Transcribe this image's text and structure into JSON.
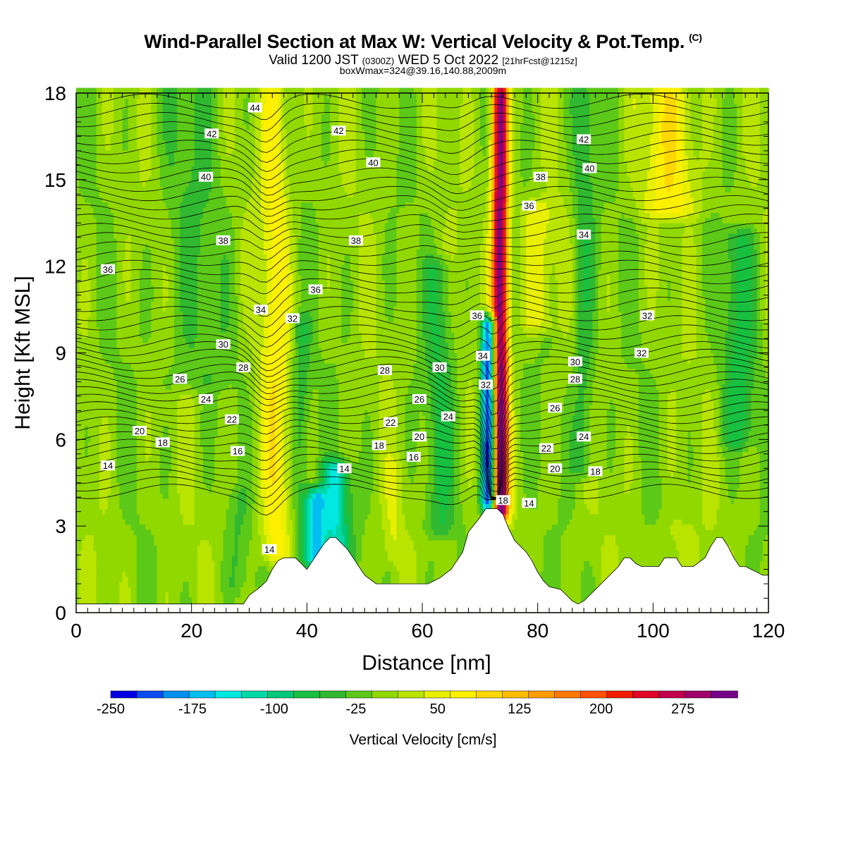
{
  "header": {
    "title": "Wind-Parallel Section at Max W: Vertical Velocity & Pot.Temp.",
    "copyright": "(C)",
    "valid_prefix": "Valid 1200 JST",
    "valid_zulu": "(0300Z)",
    "valid_date": "WED 5 Oct 2022",
    "forecast": "[21hrFcst@1215z]",
    "subtitle": "boxWmax=324@39.16,140.88,2009m"
  },
  "chart_data": {
    "type": "heatmap",
    "xlabel": "Distance [nm]",
    "ylabel": "Height [Kft MSL]",
    "xlim": [
      0,
      120
    ],
    "ylim": [
      0,
      18
    ],
    "x_ticks": [
      "0",
      "20",
      "40",
      "60",
      "80",
      "100",
      "120"
    ],
    "y_ticks": [
      "0",
      "3",
      "6",
      "9",
      "12",
      "15",
      "18"
    ],
    "colorbar": {
      "label": "Vertical Velocity [cm/s]",
      "tick_labels": [
        "-250",
        "-175",
        "-100",
        "-25",
        "50",
        "125",
        "200",
        "275"
      ],
      "tick_values": [
        -250,
        -175,
        -100,
        -25,
        50,
        125,
        200,
        275
      ],
      "min": -250,
      "max": 325,
      "colors": [
        "#0000e0",
        "#0a4cf0",
        "#0090f0",
        "#00bef0",
        "#00e8e0",
        "#00d8a8",
        "#00c878",
        "#18c040",
        "#30b830",
        "#5cc818",
        "#90d800",
        "#b8e400",
        "#e8f000",
        "#fff000",
        "#ffd800",
        "#ffbc00",
        "#ff9c00",
        "#ff7800",
        "#ff5000",
        "#f01c00",
        "#e00028",
        "#c0004c",
        "#a00068",
        "#780088"
      ]
    },
    "terrain": [
      [
        0,
        0.3
      ],
      [
        2,
        0.3
      ],
      [
        4,
        0.3
      ],
      [
        6,
        0.3
      ],
      [
        8,
        0.3
      ],
      [
        10,
        0.3
      ],
      [
        12,
        0.3
      ],
      [
        14,
        0.3
      ],
      [
        16,
        0.3
      ],
      [
        18,
        0.3
      ],
      [
        20,
        0.3
      ],
      [
        22,
        0.3
      ],
      [
        24,
        0.3
      ],
      [
        26,
        0.3
      ],
      [
        28,
        0.3
      ],
      [
        29,
        0.3
      ],
      [
        30,
        0.6
      ],
      [
        32,
        0.9
      ],
      [
        33,
        1.1
      ],
      [
        34,
        1.5
      ],
      [
        35,
        1.8
      ],
      [
        36,
        1.9
      ],
      [
        37,
        1.9
      ],
      [
        38,
        1.9
      ],
      [
        39,
        1.7
      ],
      [
        40,
        1.5
      ],
      [
        41,
        1.8
      ],
      [
        42,
        2.1
      ],
      [
        43,
        2.4
      ],
      [
        44,
        2.6
      ],
      [
        45,
        2.6
      ],
      [
        46,
        2.4
      ],
      [
        47,
        2.2
      ],
      [
        48,
        1.9
      ],
      [
        49,
        1.6
      ],
      [
        50,
        1.3
      ],
      [
        52,
        1.0
      ],
      [
        55,
        1.0
      ],
      [
        58,
        1.0
      ],
      [
        61,
        1.0
      ],
      [
        63,
        1.2
      ],
      [
        65,
        1.5
      ],
      [
        67,
        2.1
      ],
      [
        68,
        2.8
      ],
      [
        70,
        3.3
      ],
      [
        71,
        3.6
      ],
      [
        72,
        3.6
      ],
      [
        73,
        3.6
      ],
      [
        74,
        3.4
      ],
      [
        75,
        2.9
      ],
      [
        76,
        2.5
      ],
      [
        77,
        2.3
      ],
      [
        78,
        2.1
      ],
      [
        79,
        1.8
      ],
      [
        80,
        1.4
      ],
      [
        81,
        1.1
      ],
      [
        82,
        0.9
      ],
      [
        84,
        0.8
      ],
      [
        85,
        0.6
      ],
      [
        86,
        0.4
      ],
      [
        87,
        0.3
      ],
      [
        88,
        0.4
      ],
      [
        89,
        0.6
      ],
      [
        90,
        0.8
      ],
      [
        92,
        1.2
      ],
      [
        94,
        1.6
      ],
      [
        95,
        1.9
      ],
      [
        96,
        1.9
      ],
      [
        97,
        1.7
      ],
      [
        98,
        1.6
      ],
      [
        99,
        1.6
      ],
      [
        101,
        1.6
      ],
      [
        102,
        1.9
      ],
      [
        104,
        1.9
      ],
      [
        105,
        1.6
      ],
      [
        107,
        1.6
      ],
      [
        109,
        1.9
      ],
      [
        110,
        2.3
      ],
      [
        111,
        2.6
      ],
      [
        112,
        2.6
      ],
      [
        113,
        2.3
      ],
      [
        114,
        1.9
      ],
      [
        115,
        1.6
      ],
      [
        116,
        1.6
      ],
      [
        117,
        1.5
      ],
      [
        118,
        1.4
      ],
      [
        119,
        1.3
      ],
      [
        120,
        1.3
      ]
    ],
    "vv_features": [
      {
        "x": 73.5,
        "y0": 3.5,
        "y1": 18,
        "amplitude": 320,
        "halfwidth": 1.4
      },
      {
        "x": 71.5,
        "y0": 3.8,
        "y1": 10,
        "amplitude": -250,
        "halfwidth": 1.3
      },
      {
        "x": 34.5,
        "y0": 2,
        "y1": 18,
        "amplitude": 70,
        "halfwidth": 2.6
      },
      {
        "x": 39,
        "y0": 2,
        "y1": 10,
        "amplitude": -55,
        "halfwidth": 1.6
      },
      {
        "x": 41.5,
        "y0": 1.8,
        "y1": 4,
        "amplitude": -150,
        "halfwidth": 1.8
      },
      {
        "x": 45,
        "y0": 2,
        "y1": 5,
        "amplitude": -120,
        "halfwidth": 2.5
      },
      {
        "x": 63,
        "y0": 3,
        "y1": 12,
        "amplitude": -50,
        "halfwidth": 2.5
      },
      {
        "x": 80,
        "y0": 10,
        "y1": 14,
        "amplitude": 55,
        "halfwidth": 3
      },
      {
        "x": 103,
        "y0": 14,
        "y1": 18,
        "amplitude": 70,
        "halfwidth": 5
      },
      {
        "x": 104,
        "y0": 1,
        "y1": 3,
        "amplitude": 25,
        "halfwidth": 3
      },
      {
        "x": 88,
        "y0": 5,
        "y1": 18,
        "amplitude": -55,
        "halfwidth": 2
      },
      {
        "x": 115,
        "y0": 6,
        "y1": 13,
        "amplitude": -60,
        "halfwidth": 3
      },
      {
        "x": 20,
        "y0": 8,
        "y1": 18,
        "amplitude": -30,
        "halfwidth": 6
      },
      {
        "x": 28,
        "y0": 1,
        "y1": 4,
        "amplitude": -25,
        "halfwidth": 2
      },
      {
        "x": 55,
        "y0": 2,
        "y1": 5,
        "amplitude": 30,
        "halfwidth": 1.5
      }
    ],
    "theta_labels": [
      {
        "text": "44",
        "x": 31,
        "y": 17.5
      },
      {
        "text": "42",
        "x": 23.5,
        "y": 16.6
      },
      {
        "text": "42",
        "x": 45.5,
        "y": 16.7
      },
      {
        "text": "40",
        "x": 22.5,
        "y": 15.1
      },
      {
        "text": "40",
        "x": 51.5,
        "y": 15.6
      },
      {
        "text": "38",
        "x": 25.5,
        "y": 12.9
      },
      {
        "text": "38",
        "x": 48.5,
        "y": 12.9
      },
      {
        "text": "36",
        "x": 5.5,
        "y": 11.9
      },
      {
        "text": "36",
        "x": 41.5,
        "y": 11.2
      },
      {
        "text": "34",
        "x": 32,
        "y": 10.5
      },
      {
        "text": "32",
        "x": 37.5,
        "y": 10.2
      },
      {
        "text": "30",
        "x": 25.5,
        "y": 9.3
      },
      {
        "text": "28",
        "x": 29,
        "y": 8.5
      },
      {
        "text": "26",
        "x": 18,
        "y": 8.1
      },
      {
        "text": "24",
        "x": 22.5,
        "y": 7.4
      },
      {
        "text": "22",
        "x": 27,
        "y": 6.7
      },
      {
        "text": "20",
        "x": 11,
        "y": 6.3
      },
      {
        "text": "18",
        "x": 15,
        "y": 5.9
      },
      {
        "text": "16",
        "x": 28,
        "y": 5.6
      },
      {
        "text": "14",
        "x": 5.5,
        "y": 5.1
      },
      {
        "text": "14",
        "x": 46.5,
        "y": 5.0
      },
      {
        "text": "14",
        "x": 33.5,
        "y": 2.2
      },
      {
        "text": "28",
        "x": 53.5,
        "y": 8.4
      },
      {
        "text": "30",
        "x": 63,
        "y": 8.5
      },
      {
        "text": "26",
        "x": 59.5,
        "y": 7.4
      },
      {
        "text": "24",
        "x": 64.5,
        "y": 6.8
      },
      {
        "text": "22",
        "x": 54.5,
        "y": 6.6
      },
      {
        "text": "20",
        "x": 59.5,
        "y": 6.1
      },
      {
        "text": "18",
        "x": 52.5,
        "y": 5.8
      },
      {
        "text": "16",
        "x": 58.5,
        "y": 5.4
      },
      {
        "text": "36",
        "x": 69.5,
        "y": 10.3
      },
      {
        "text": "34",
        "x": 70.5,
        "y": 8.9
      },
      {
        "text": "32",
        "x": 71,
        "y": 7.9
      },
      {
        "text": "18",
        "x": 74,
        "y": 3.9
      },
      {
        "text": "14",
        "x": 78.5,
        "y": 3.8
      },
      {
        "text": "38",
        "x": 80.5,
        "y": 15.1
      },
      {
        "text": "36",
        "x": 78.5,
        "y": 14.1
      },
      {
        "text": "42",
        "x": 88,
        "y": 16.4
      },
      {
        "text": "40",
        "x": 89,
        "y": 15.4
      },
      {
        "text": "34",
        "x": 88,
        "y": 13.1
      },
      {
        "text": "32",
        "x": 99,
        "y": 10.3
      },
      {
        "text": "32",
        "x": 98,
        "y": 9.0
      },
      {
        "text": "30",
        "x": 86.5,
        "y": 8.7
      },
      {
        "text": "28",
        "x": 86.5,
        "y": 8.1
      },
      {
        "text": "26",
        "x": 83,
        "y": 7.1
      },
      {
        "text": "24",
        "x": 88,
        "y": 6.1
      },
      {
        "text": "22",
        "x": 81.5,
        "y": 5.7
      },
      {
        "text": "20",
        "x": 83,
        "y": 5.0
      },
      {
        "text": "18",
        "x": 90,
        "y": 4.9
      }
    ]
  }
}
